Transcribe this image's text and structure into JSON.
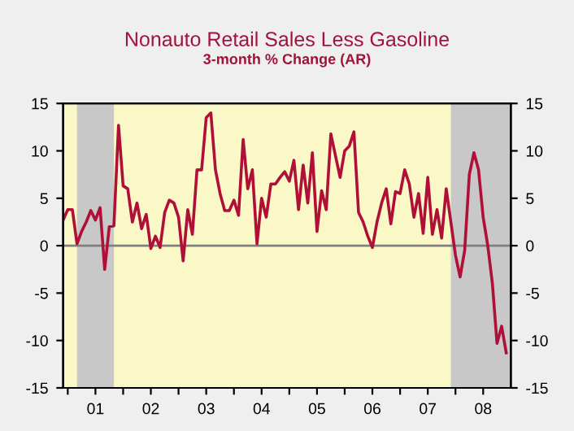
{
  "chart_data": {
    "type": "line",
    "title": "Nonauto Retail Sales Less Gasoline",
    "subtitle": "3-month % Change (AR)",
    "x": [
      "2000-12",
      "2001-01",
      "2001-02",
      "2001-03",
      "2001-04",
      "2001-05",
      "2001-06",
      "2001-07",
      "2001-08",
      "2001-09",
      "2001-10",
      "2001-11",
      "2001-12",
      "2002-01",
      "2002-02",
      "2002-03",
      "2002-04",
      "2002-05",
      "2002-06",
      "2002-07",
      "2002-08",
      "2002-09",
      "2002-10",
      "2002-11",
      "2002-12",
      "2003-01",
      "2003-02",
      "2003-03",
      "2003-04",
      "2003-05",
      "2003-06",
      "2003-07",
      "2003-08",
      "2003-09",
      "2003-10",
      "2003-11",
      "2003-12",
      "2004-01",
      "2004-02",
      "2004-03",
      "2004-04",
      "2004-05",
      "2004-06",
      "2004-07",
      "2004-08",
      "2004-09",
      "2004-10",
      "2004-11",
      "2004-12",
      "2005-01",
      "2005-02",
      "2005-03",
      "2005-04",
      "2005-05",
      "2005-06",
      "2005-07",
      "2005-08",
      "2005-09",
      "2005-10",
      "2005-11",
      "2005-12",
      "2006-01",
      "2006-02",
      "2006-03",
      "2006-04",
      "2006-05",
      "2006-06",
      "2006-07",
      "2006-08",
      "2006-09",
      "2006-10",
      "2006-11",
      "2006-12",
      "2007-01",
      "2007-02",
      "2007-03",
      "2007-04",
      "2007-05",
      "2007-06",
      "2007-07",
      "2007-08",
      "2007-09",
      "2007-10",
      "2007-11",
      "2007-12",
      "2008-01",
      "2008-02",
      "2008-03",
      "2008-04",
      "2008-05",
      "2008-06",
      "2008-07",
      "2008-08",
      "2008-09",
      "2008-10",
      "2008-11",
      "2008-12"
    ],
    "series": [
      {
        "color": "#b01038",
        "values": [
          2.7,
          3.8,
          3.8,
          0.2,
          1.5,
          2.5,
          3.7,
          2.7,
          4.0,
          -2.5,
          2.0,
          2.1,
          12.7,
          6.3,
          6.0,
          2.5,
          4.5,
          1.8,
          3.3,
          -0.3,
          1.0,
          -0.2,
          3.5,
          4.8,
          4.5,
          3.0,
          -1.6,
          3.8,
          1.2,
          8.0,
          8.0,
          13.5,
          14.0,
          8.0,
          5.5,
          3.7,
          3.7,
          4.8,
          3.2,
          11.2,
          6.0,
          8.0,
          0.2,
          5.0,
          3.0,
          6.5,
          6.5,
          7.2,
          7.8,
          6.8,
          9.0,
          3.8,
          8.5,
          4.5,
          9.8,
          1.5,
          5.8,
          3.8,
          11.8,
          9.5,
          7.2,
          10.0,
          10.5,
          12.0,
          3.5,
          2.5,
          1.0,
          -0.2,
          2.5,
          4.5,
          6.0,
          2.3,
          5.7,
          5.5,
          8.0,
          6.5,
          3.0,
          5.5,
          1.3,
          7.2,
          1.2,
          3.8,
          0.8,
          6.0,
          2.5,
          -1.0,
          -3.3,
          -0.5,
          7.5,
          9.8,
          8.0,
          3.0,
          0.0,
          -4.0,
          -10.3,
          -8.5,
          -11.3
        ]
      }
    ],
    "xlim": [
      "2000-12",
      "2009-01"
    ],
    "xticks": [
      {
        "value": "2001-01",
        "label": null
      },
      {
        "value": "2001-07",
        "label": "01"
      },
      {
        "value": "2002-01",
        "label": null
      },
      {
        "value": "2002-07",
        "label": "02"
      },
      {
        "value": "2003-01",
        "label": null
      },
      {
        "value": "2003-07",
        "label": "03"
      },
      {
        "value": "2004-01",
        "label": null
      },
      {
        "value": "2004-07",
        "label": "04"
      },
      {
        "value": "2005-01",
        "label": null
      },
      {
        "value": "2005-07",
        "label": "05"
      },
      {
        "value": "2006-01",
        "label": null
      },
      {
        "value": "2006-07",
        "label": "06"
      },
      {
        "value": "2007-01",
        "label": null
      },
      {
        "value": "2007-07",
        "label": "07"
      },
      {
        "value": "2008-01",
        "label": null
      },
      {
        "value": "2008-07",
        "label": "08"
      }
    ],
    "ylim": [
      -15,
      15
    ],
    "yticks": [
      -15,
      -10,
      -5,
      0,
      5,
      10,
      15
    ],
    "y2lim": [
      -15,
      15
    ],
    "y2ticks": [
      -15,
      -10,
      -5,
      0,
      5,
      10,
      15
    ],
    "ref_lines": [
      {
        "axis": "y",
        "value": 0,
        "color": "#808080"
      }
    ],
    "bands": [
      {
        "axis": "x",
        "from": "2001-03",
        "to": "2001-11",
        "color": "#c8c8c8"
      },
      {
        "axis": "x",
        "from": "2007-12",
        "to": "2009-01",
        "color": "#c8c8c8"
      }
    ],
    "marker": "none",
    "line_style": "solid"
  }
}
